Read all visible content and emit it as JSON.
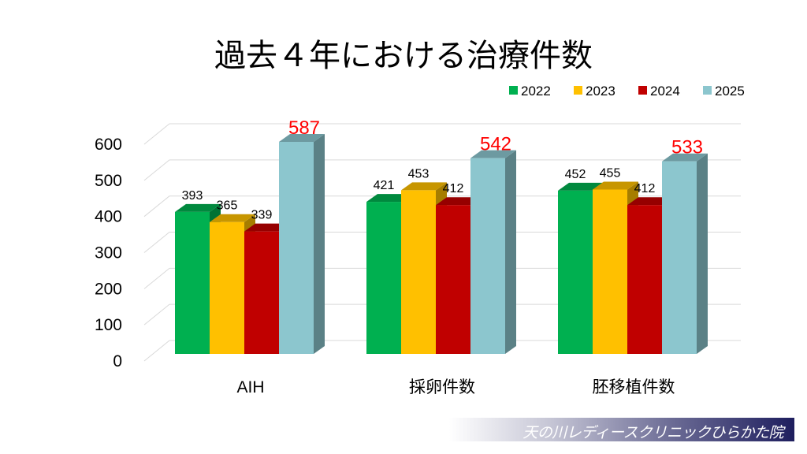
{
  "chart_data": {
    "type": "bar",
    "title": "過去４年における治療件数",
    "categories": [
      "AIH",
      "採卵件数",
      "胚移植件数"
    ],
    "series": [
      {
        "name": "2022",
        "values": [
          393,
          421,
          452
        ],
        "color": "#00b050"
      },
      {
        "name": "2023",
        "values": [
          365,
          453,
          455
        ],
        "color": "#ffc000"
      },
      {
        "name": "2024",
        "values": [
          339,
          412,
          412
        ],
        "color": "#c00000"
      },
      {
        "name": "2025",
        "values": [
          587,
          542,
          533
        ],
        "color": "#8cc6ce"
      }
    ],
    "highlight_label_color": "#ff0000",
    "yticks": [
      0,
      100,
      200,
      300,
      400,
      500,
      600
    ],
    "ylim": [
      0,
      600
    ],
    "grid": true,
    "legend": "top-right",
    "xlabel": "",
    "ylabel": ""
  },
  "footer": {
    "logo_text": "天の川レディースクリニックひらかた院"
  }
}
